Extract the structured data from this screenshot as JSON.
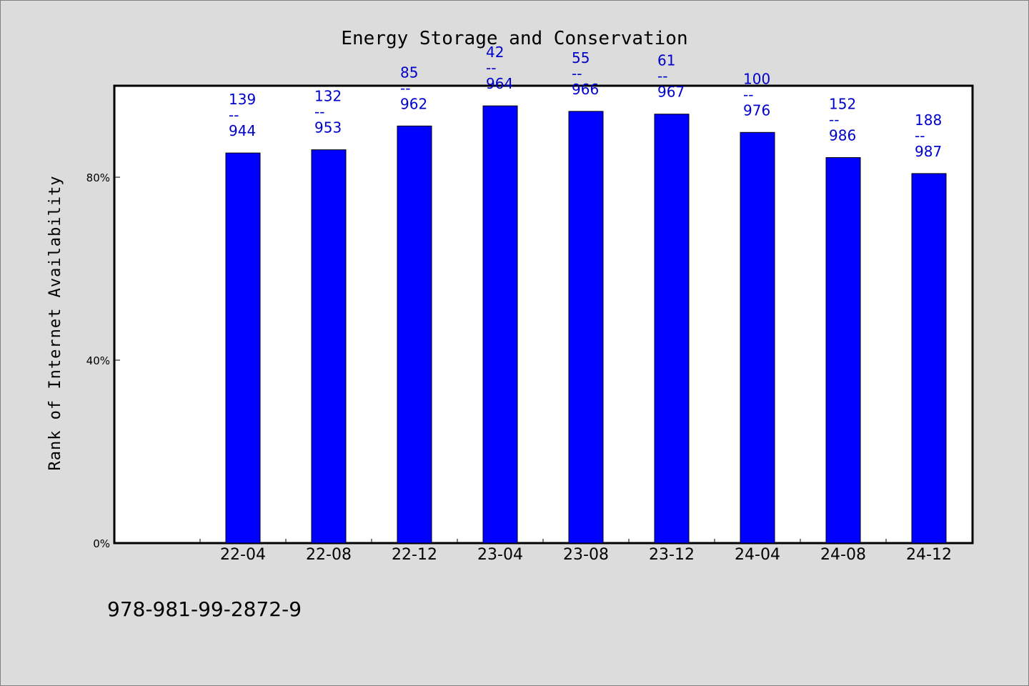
{
  "chart_data": {
    "type": "bar",
    "title": "Energy Storage and Conservation",
    "ylabel": "Rank of Internet Availability",
    "xlabel": "",
    "categories": [
      "22-04",
      "22-08",
      "22-12",
      "23-04",
      "23-08",
      "23-12",
      "24-04",
      "24-08",
      "24-12"
    ],
    "values": [
      85.3,
      86.0,
      91.2,
      95.6,
      94.4,
      93.8,
      89.8,
      84.3,
      80.8
    ],
    "ylim": [
      0,
      100
    ],
    "yticks": [
      {
        "value": 0,
        "label": "0%"
      },
      {
        "value": 40,
        "label": "40%"
      },
      {
        "value": 80,
        "label": "80%"
      }
    ],
    "bar_labels": [
      {
        "top": "139",
        "sep": "--",
        "bottom": "944"
      },
      {
        "top": "132",
        "sep": "--",
        "bottom": "953"
      },
      {
        "top": "85",
        "sep": "--",
        "bottom": "962"
      },
      {
        "top": "42",
        "sep": "--",
        "bottom": "964"
      },
      {
        "top": "55",
        "sep": "--",
        "bottom": "966"
      },
      {
        "top": "61",
        "sep": "--",
        "bottom": "967"
      },
      {
        "top": "100",
        "sep": "--",
        "bottom": "976"
      },
      {
        "top": "152",
        "sep": "--",
        "bottom": "986"
      },
      {
        "top": "188",
        "sep": "--",
        "bottom": "987"
      }
    ],
    "grid": false,
    "colors": {
      "bar": "#0000ff",
      "bar_label": "#0000cc",
      "plot_bg": "#ffffff",
      "page_bg": "#dcdcdc"
    }
  },
  "footnote": "978-981-99-2872-9"
}
